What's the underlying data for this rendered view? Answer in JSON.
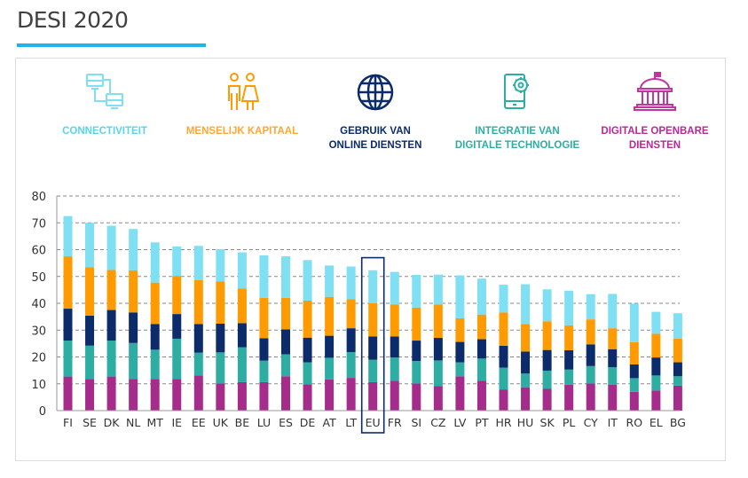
{
  "page": {
    "title": "DESI 2020",
    "accent_color": "#1eb4ea"
  },
  "legend": [
    {
      "key": "connectiviteit",
      "label": "CONNECTIVITEIT",
      "icon": "connected-computers-icon",
      "color": "#7fdff3"
    },
    {
      "key": "menselijk_kapitaal",
      "label": "MENSELIJK KAPITAAL",
      "icon": "people-icon",
      "color": "#ff9a00"
    },
    {
      "key": "gebruik",
      "label": "GEBRUIK VAN\nONLINE DIENSTEN",
      "icon": "globe-icon",
      "color": "#0b2b6b"
    },
    {
      "key": "integratie",
      "label": "INTEGRATIE VAN\nDIGITALE TECHNOLOGIE",
      "icon": "smartphone-gear-icon",
      "color": "#2eaea3"
    },
    {
      "key": "openbare_diensten",
      "label": "DIGITALE OPENBARE\nDIENSTEN",
      "icon": "government-building-icon",
      "color": "#a62c8c"
    }
  ],
  "chart_data": {
    "type": "bar",
    "stacked": true,
    "title": "DESI 2020",
    "xlabel": "",
    "ylabel": "",
    "ylim": [
      0,
      80
    ],
    "yticks": [
      0,
      10,
      20,
      30,
      40,
      50,
      60,
      70,
      80
    ],
    "grid": true,
    "highlight_category": "EU",
    "categories": [
      "FI",
      "SE",
      "DK",
      "NL",
      "MT",
      "IE",
      "EE",
      "UK",
      "BE",
      "LU",
      "ES",
      "DE",
      "AT",
      "LT",
      "EU",
      "FR",
      "SI",
      "CZ",
      "LV",
      "PT",
      "HR",
      "HU",
      "SK",
      "PL",
      "CY",
      "IT",
      "RO",
      "EL",
      "BG"
    ],
    "series": [
      {
        "name": "Digitale openbare diensten",
        "color": "#a62c8c",
        "values": [
          12.7,
          11.8,
          12.7,
          11.8,
          11.8,
          11.8,
          13.1,
          10.1,
          10.6,
          10.6,
          12.8,
          9.8,
          11.6,
          12.2,
          10.6,
          11.1,
          10.1,
          9.2,
          12.8,
          11.1,
          7.9,
          8.7,
          8.1,
          9.6,
          10.1,
          9.6,
          7.0,
          7.5,
          9.3
        ]
      },
      {
        "name": "Integratie van digitale technologie",
        "color": "#2eaea3",
        "values": [
          13.4,
          12.4,
          13.4,
          13.4,
          10.9,
          15.0,
          8.5,
          11.6,
          13.0,
          8.0,
          8.2,
          8.2,
          8.1,
          9.6,
          8.4,
          8.7,
          8.4,
          9.5,
          5.2,
          8.3,
          8.1,
          5.1,
          6.8,
          5.7,
          6.5,
          6.6,
          5.1,
          5.6,
          3.5
        ]
      },
      {
        "name": "Gebruik van online diensten",
        "color": "#0b2b6b",
        "values": [
          11.9,
          11.2,
          11.4,
          11.4,
          9.6,
          9.2,
          10.7,
          10.7,
          9.0,
          8.4,
          9.3,
          9.2,
          8.2,
          8.9,
          8.6,
          7.8,
          7.6,
          8.4,
          7.6,
          7.2,
          8.2,
          8.2,
          7.7,
          7.2,
          8.1,
          6.7,
          5.1,
          6.7,
          5.2
        ]
      },
      {
        "name": "Menselijk kapitaal",
        "color": "#ff9a00",
        "values": [
          19.5,
          18.0,
          14.9,
          15.7,
          15.4,
          14.2,
          16.4,
          15.8,
          12.9,
          15.0,
          11.7,
          13.8,
          14.5,
          10.8,
          12.4,
          11.9,
          12.3,
          12.4,
          8.8,
          9.2,
          12.4,
          10.3,
          10.7,
          9.3,
          9.3,
          7.8,
          8.3,
          8.8,
          8.8
        ]
      },
      {
        "name": "Connectiviteit",
        "color": "#7fdff3",
        "values": [
          15.0,
          16.6,
          16.5,
          15.4,
          15.0,
          11.0,
          12.7,
          12.0,
          13.5,
          15.9,
          15.5,
          15.1,
          11.7,
          12.2,
          12.3,
          12.2,
          12.2,
          11.2,
          16.0,
          13.4,
          10.3,
          14.8,
          11.9,
          12.9,
          9.4,
          12.8,
          14.4,
          8.2,
          9.5
        ]
      }
    ]
  }
}
